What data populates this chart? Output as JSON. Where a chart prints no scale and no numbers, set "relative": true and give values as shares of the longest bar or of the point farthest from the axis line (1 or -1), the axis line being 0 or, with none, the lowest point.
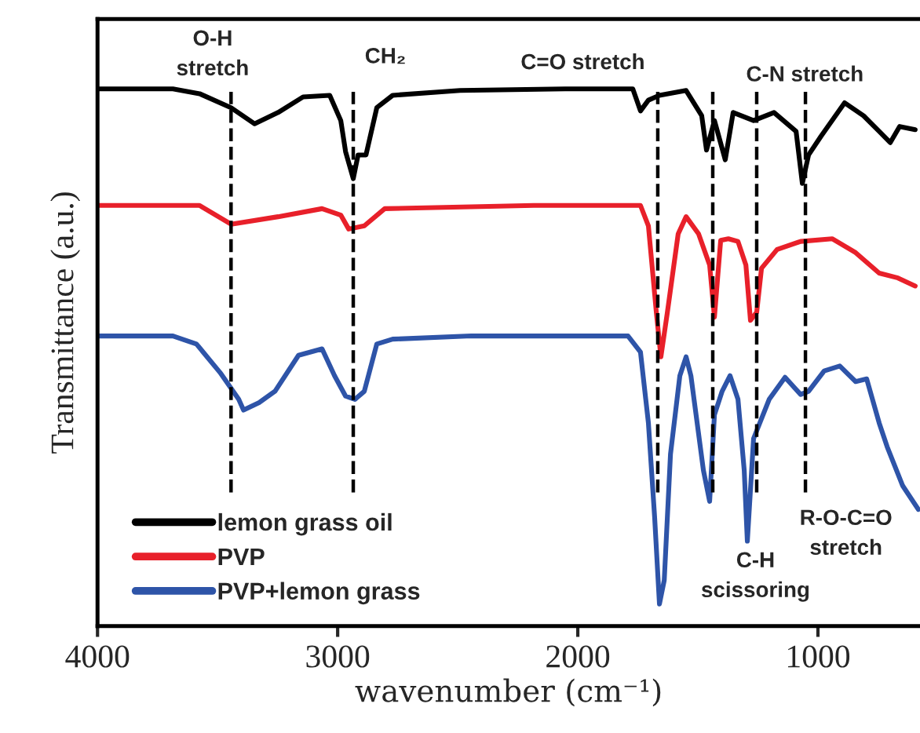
{
  "chart_data": {
    "type": "line",
    "relative": true,
    "xlabel": "wavenumber (cm⁻¹)",
    "ylabel": "Transmittance (a.u.)",
    "xlim": [
      4000,
      575
    ],
    "xticks": [
      4000,
      3000,
      2000,
      1000
    ],
    "grid": false,
    "legend": "bottom left",
    "marker": "none",
    "line_style": "solid",
    "series": [
      {
        "name": "lemon grass oil",
        "color": "#000000",
        "x": [
          4000,
          3686,
          3575,
          3444,
          3346,
          3248,
          3144,
          3033,
          2987,
          2967,
          2935,
          2915,
          2882,
          2837,
          2771,
          2490,
          2052,
          1771,
          1739,
          1706,
          1660,
          1549,
          1484,
          1464,
          1431,
          1386,
          1353,
          1268,
          1183,
          1091,
          1065,
          1039,
          987,
          889,
          810,
          745,
          699,
          660,
          595
        ],
        "values": [
          1.0,
          1.0,
          0.991,
          0.965,
          0.935,
          0.956,
          0.985,
          0.988,
          0.941,
          0.883,
          0.833,
          0.877,
          0.877,
          0.965,
          0.988,
          0.997,
          1.0,
          1.0,
          0.959,
          0.979,
          0.988,
          0.997,
          0.95,
          0.886,
          0.941,
          0.868,
          0.956,
          0.941,
          0.956,
          0.921,
          0.824,
          0.877,
          0.912,
          0.974,
          0.95,
          0.921,
          0.9,
          0.93,
          0.924
        ]
      },
      {
        "name": "PVP",
        "color": "#e8202a",
        "x": [
          4000,
          3575,
          3444,
          3248,
          3065,
          2987,
          2954,
          2889,
          2804,
          2183,
          1739,
          1706,
          1673,
          1654,
          1627,
          1582,
          1549,
          1497,
          1451,
          1431,
          1405,
          1373,
          1333,
          1300,
          1281,
          1255,
          1235,
          1170,
          1072,
          941,
          843,
          745,
          667,
          595
        ],
        "values": [
          0.783,
          0.783,
          0.748,
          0.762,
          0.777,
          0.765,
          0.739,
          0.745,
          0.777,
          0.783,
          0.783,
          0.745,
          0.584,
          0.501,
          0.584,
          0.73,
          0.762,
          0.73,
          0.672,
          0.575,
          0.718,
          0.721,
          0.716,
          0.672,
          0.569,
          0.584,
          0.666,
          0.701,
          0.716,
          0.721,
          0.695,
          0.657,
          0.648,
          0.633
        ]
      },
      {
        "name": "PVP+lemon grass",
        "color": "#2e54a8",
        "x": [
          4000,
          3686,
          3588,
          3490,
          3412,
          3392,
          3327,
          3261,
          3163,
          3065,
          3013,
          2967,
          2928,
          2889,
          2837,
          2771,
          2444,
          1791,
          1739,
          1706,
          1680,
          1660,
          1640,
          1614,
          1575,
          1549,
          1529,
          1477,
          1451,
          1431,
          1399,
          1366,
          1333,
          1307,
          1294,
          1268,
          1242,
          1203,
          1137,
          1072,
          1039,
          974,
          909,
          843,
          797,
          745,
          712,
          647,
          582
        ],
        "values": [
          0.54,
          0.54,
          0.525,
          0.472,
          0.422,
          0.402,
          0.416,
          0.437,
          0.504,
          0.516,
          0.466,
          0.428,
          0.422,
          0.437,
          0.525,
          0.534,
          0.54,
          0.54,
          0.51,
          0.378,
          0.202,
          0.041,
          0.085,
          0.32,
          0.466,
          0.501,
          0.466,
          0.29,
          0.232,
          0.393,
          0.437,
          0.466,
          0.422,
          0.29,
          0.158,
          0.349,
          0.378,
          0.422,
          0.463,
          0.431,
          0.437,
          0.475,
          0.484,
          0.455,
          0.46,
          0.378,
          0.334,
          0.261,
          0.217
        ]
      }
    ],
    "ref_lines": [
      {
        "axis": "x",
        "value": 3444,
        "color": "#000000",
        "line_style": "dashed"
      },
      {
        "axis": "x",
        "value": 2935,
        "color": "#000000",
        "line_style": "dashed"
      },
      {
        "axis": "x",
        "value": 1667,
        "color": "#000000",
        "line_style": "dashed"
      },
      {
        "axis": "x",
        "value": 1438,
        "color": "#000000",
        "line_style": "dashed"
      },
      {
        "axis": "x",
        "value": 1255,
        "color": "#000000",
        "line_style": "dashed"
      },
      {
        "axis": "x",
        "value": 1052,
        "color": "#000000",
        "line_style": "dashed"
      }
    ],
    "annotations": [
      "O-H\nstretch",
      "CH₂",
      "C=O stretch",
      "C-N stretch",
      "C-H\nscissoring",
      "R-O-C=O\nstretch"
    ]
  }
}
